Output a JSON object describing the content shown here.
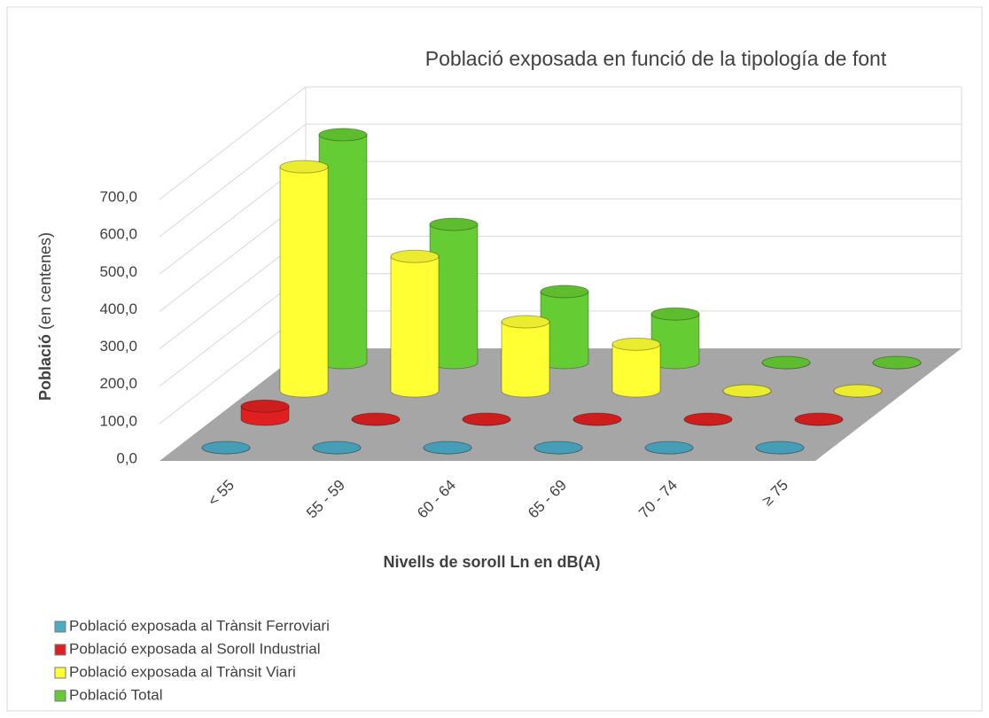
{
  "chart_data": {
    "type": "bar3d",
    "title": "Població exposada en funció de la tipología de font",
    "xlabel": "Nivells de soroll Ln en dB(A)",
    "ylabel": [
      "Població",
      "(en centenes)"
    ],
    "categories": [
      "< 55",
      "55 - 59",
      "60 - 64",
      "65 - 69",
      "70 - 74",
      "≥ 75"
    ],
    "series": [
      {
        "name": "Població exposada al Trànsit Ferroviari",
        "color": "#4bacc6",
        "values": [
          0,
          0,
          0,
          0,
          0,
          0
        ]
      },
      {
        "name": "Població exposada al Soroll Industrial",
        "color": "#e02020",
        "values": [
          35,
          0,
          0,
          0,
          0,
          0
        ]
      },
      {
        "name": "Població exposada al Trànsit Viari",
        "color": "#ffff33",
        "values": [
          600,
          360,
          185,
          125,
          0,
          0
        ]
      },
      {
        "name": "Població Total",
        "color": "#66cc33",
        "values": [
          610,
          370,
          190,
          130,
          0,
          0
        ]
      }
    ],
    "ylim": [
      0,
      700
    ],
    "yticks": [
      {
        "value": 0,
        "label": "0,0"
      },
      {
        "value": 100,
        "label": "100,0"
      },
      {
        "value": 200,
        "label": "200,0"
      },
      {
        "value": 300,
        "label": "300,0"
      },
      {
        "value": 400,
        "label": "400,0"
      },
      {
        "value": 500,
        "label": "500,0"
      },
      {
        "value": 600,
        "label": "600,0"
      },
      {
        "value": 700,
        "label": "700,0"
      }
    ],
    "grid": true,
    "legend": "bottom-left"
  }
}
